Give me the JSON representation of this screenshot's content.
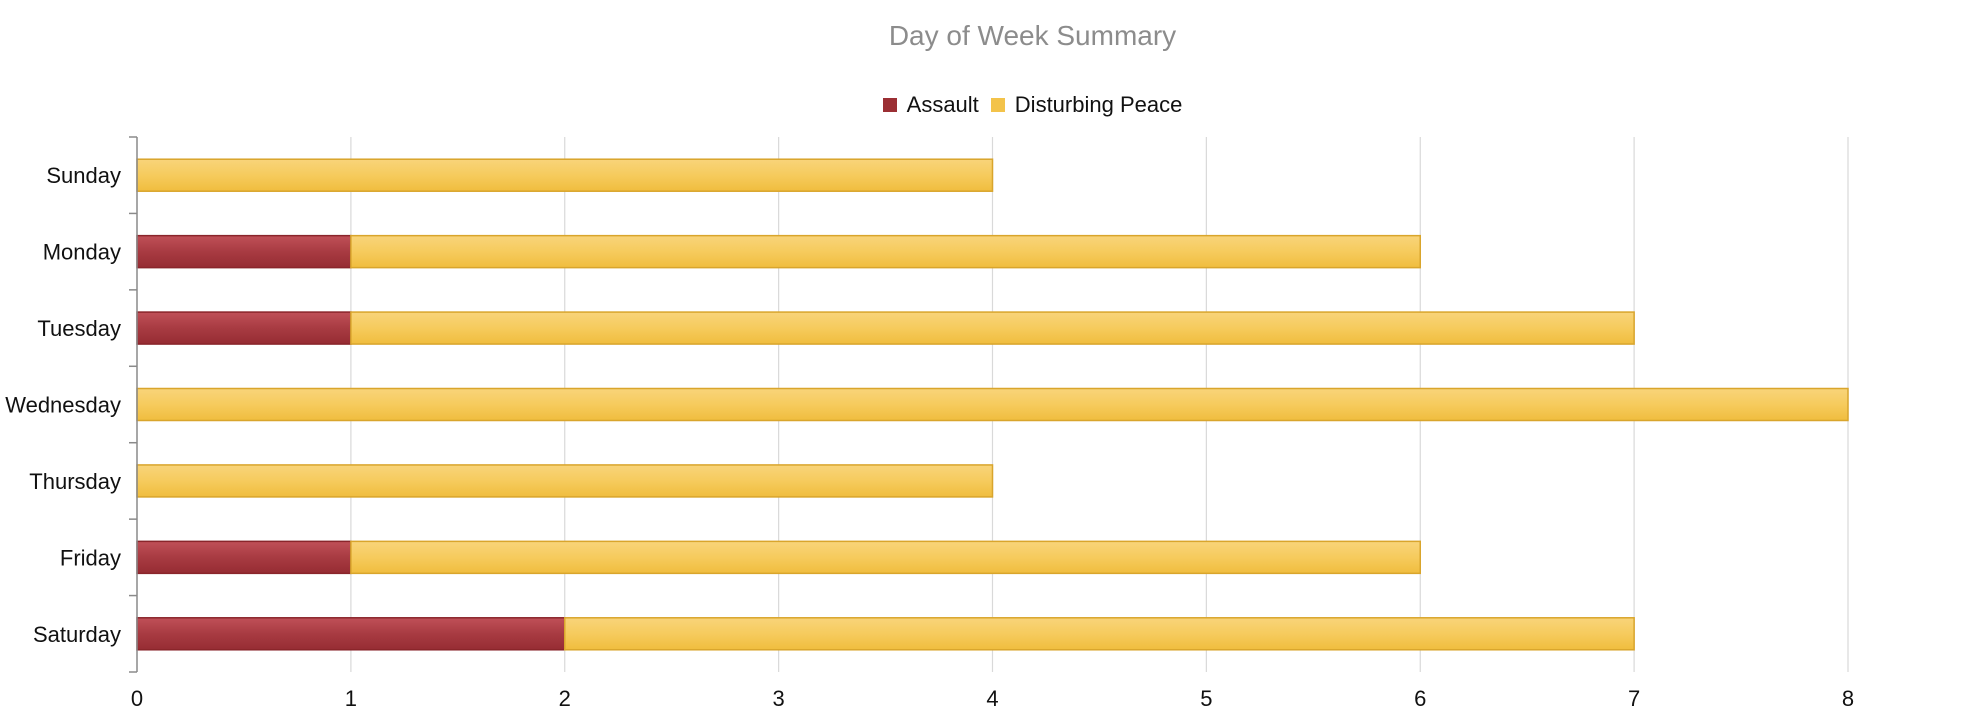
{
  "chart_data": {
    "type": "bar",
    "orientation": "horizontal",
    "stacked": true,
    "title": "Day of Week Summary",
    "xlabel": "",
    "ylabel": "",
    "categories": [
      "Sunday",
      "Monday",
      "Tuesday",
      "Wednesday",
      "Thursday",
      "Friday",
      "Saturday"
    ],
    "series": [
      {
        "name": "Assault",
        "color": "#9b2f34",
        "values": [
          0,
          1,
          1,
          0,
          0,
          1,
          2
        ]
      },
      {
        "name": "Disturbing Peace",
        "color": "#f3c34a",
        "values": [
          4,
          5,
          6,
          8,
          4,
          5,
          5
        ]
      }
    ],
    "xlim": [
      0,
      8
    ],
    "xticks": [
      "0",
      "1",
      "2",
      "3",
      "4",
      "5",
      "6",
      "7",
      "8"
    ],
    "grid": true,
    "legend_position": "top-center"
  }
}
